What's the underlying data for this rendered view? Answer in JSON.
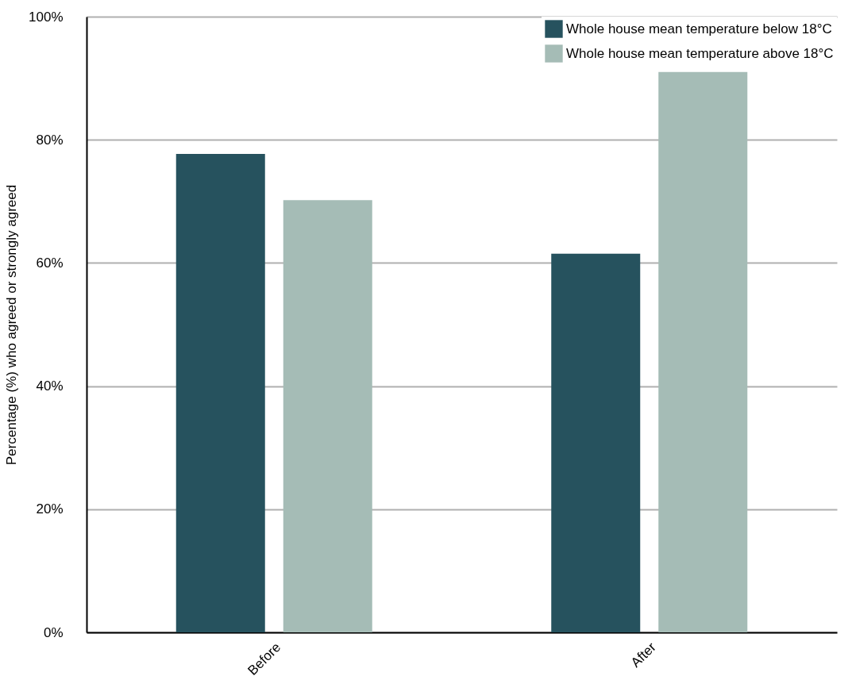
{
  "chart_data": {
    "type": "bar",
    "ylabel": "Percentage (%) who agreed or strongly agreed",
    "categories": [
      "Before",
      "After"
    ],
    "series": [
      {
        "name": "Whole house mean temperature below 18°C",
        "color": "#26525e",
        "values": [
          77.7,
          61.5
        ]
      },
      {
        "name": "Whole house mean temperature above 18°C",
        "color": "#a5bcb6",
        "values": [
          70.2,
          91.0
        ]
      }
    ],
    "ylim": [
      0,
      100
    ],
    "yticks": [
      {
        "value": 0,
        "label": "0%"
      },
      {
        "value": 20,
        "label": "20%"
      },
      {
        "value": 40,
        "label": "40%"
      },
      {
        "value": 60,
        "label": "60%"
      },
      {
        "value": 80,
        "label": "80%"
      },
      {
        "value": 100,
        "label": "100%"
      }
    ],
    "grid": "y",
    "legend": "top right"
  }
}
